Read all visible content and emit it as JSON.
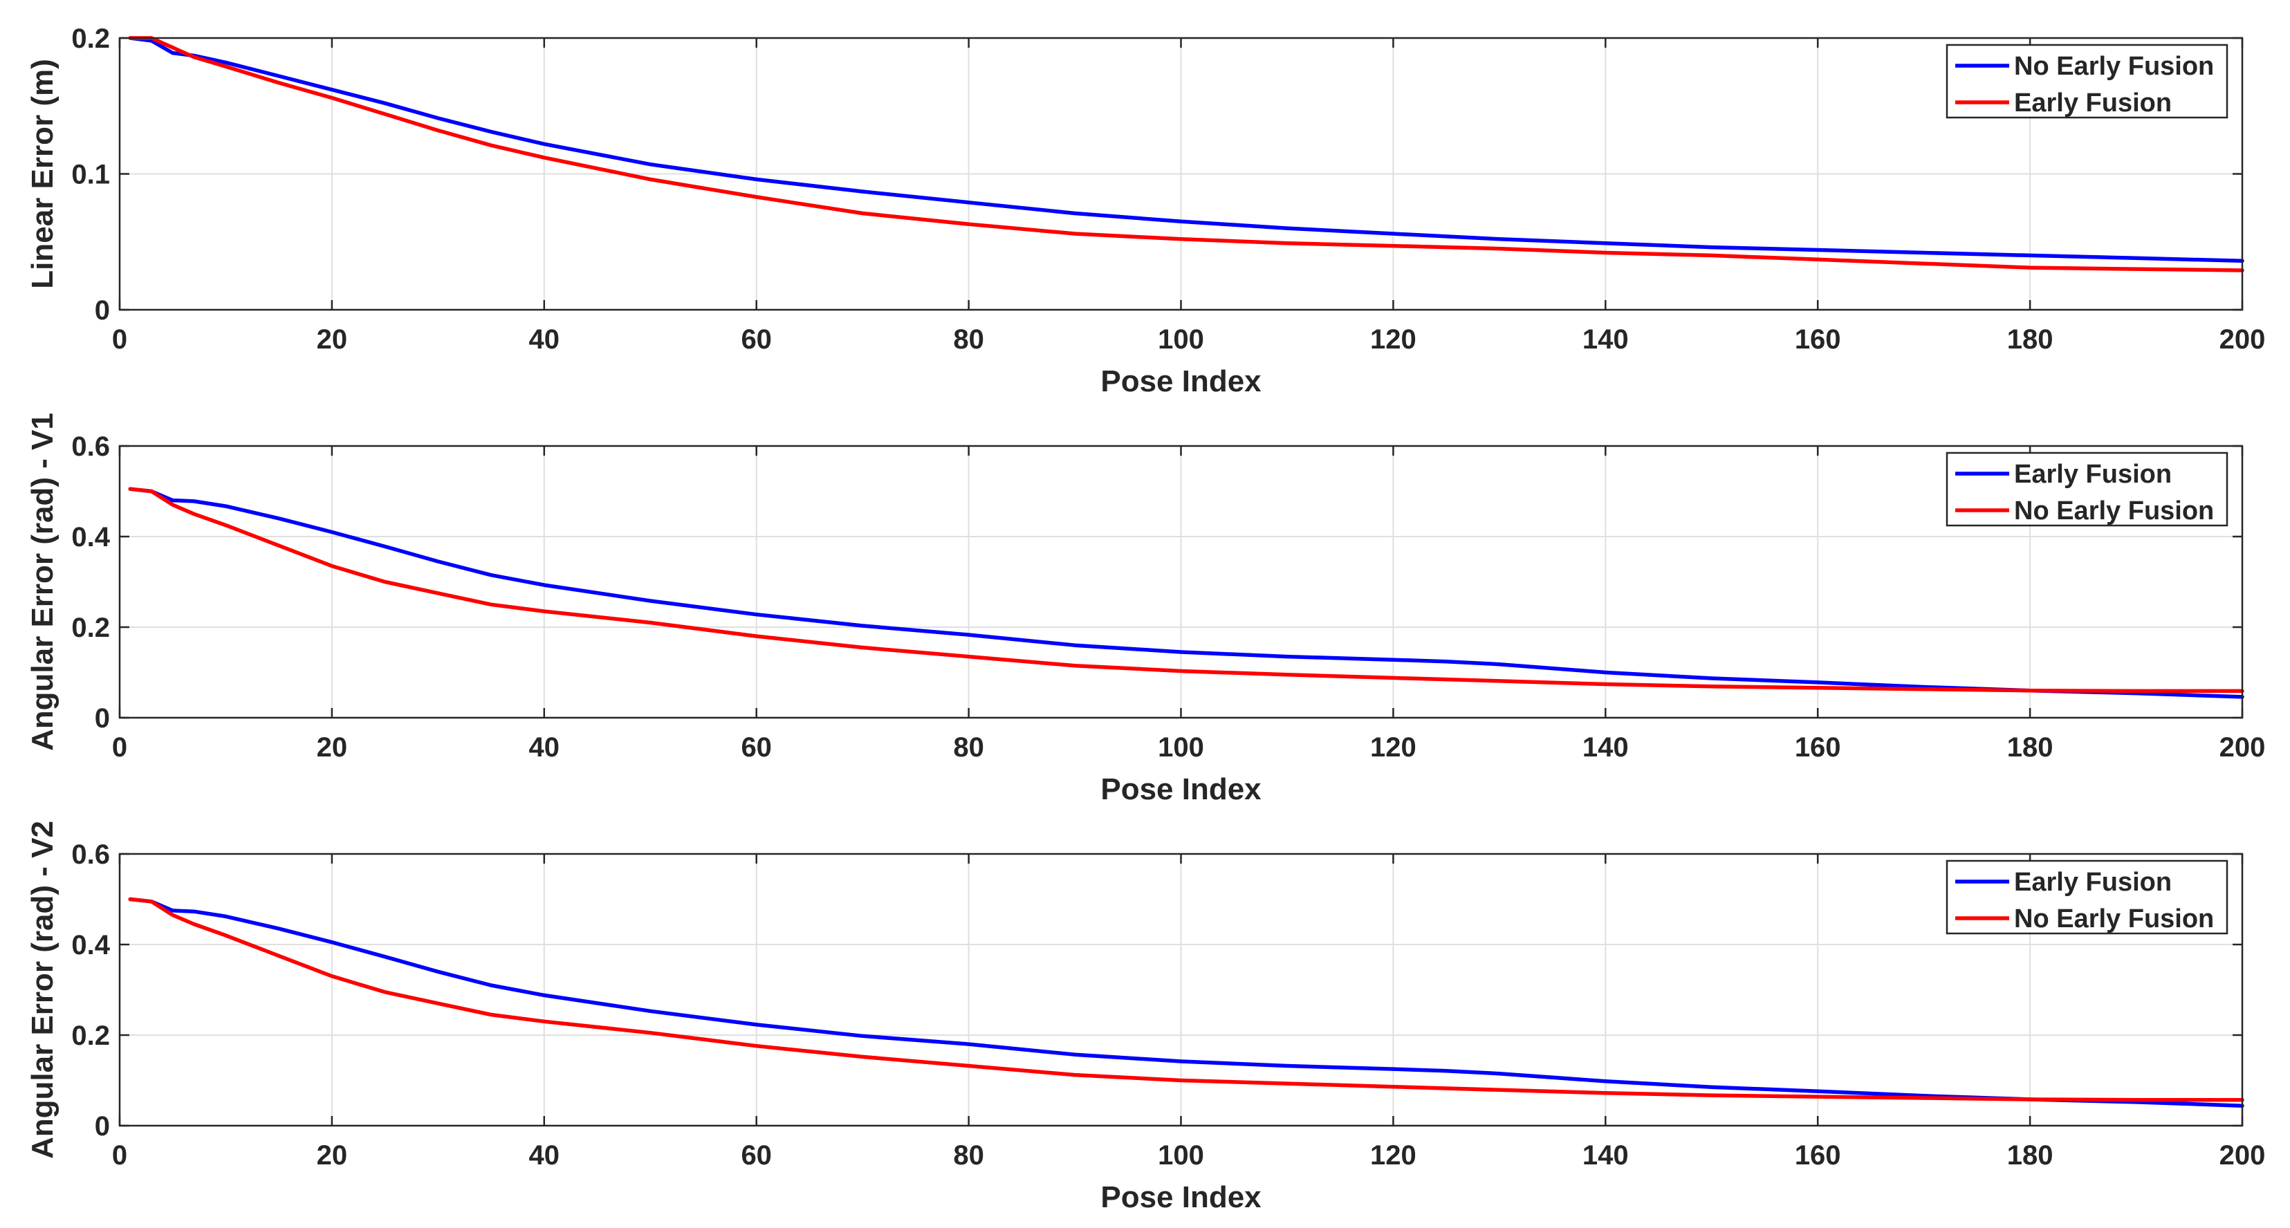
{
  "chart_data": [
    {
      "type": "line",
      "xlabel": "Pose Index",
      "ylabel": "Linear Error (m)",
      "xlim": [
        0,
        200
      ],
      "ylim": [
        0,
        0.2
      ],
      "xticks": [
        0,
        20,
        40,
        60,
        80,
        100,
        120,
        140,
        160,
        180,
        200
      ],
      "yticks": [
        0,
        0.1,
        0.2
      ],
      "ytick_labels": [
        "0",
        "0.1",
        "0.2"
      ],
      "grid": true,
      "legend_position": "top-right",
      "series": [
        {
          "name": "No Early Fusion",
          "color": "#0000ff",
          "x": [
            1,
            3,
            5,
            7,
            10,
            15,
            20,
            25,
            30,
            35,
            40,
            50,
            60,
            70,
            80,
            90,
            100,
            110,
            120,
            130,
            140,
            150,
            160,
            170,
            180,
            190,
            200
          ],
          "y": [
            0.2,
            0.198,
            0.189,
            0.187,
            0.182,
            0.172,
            0.162,
            0.152,
            0.141,
            0.131,
            0.122,
            0.107,
            0.096,
            0.087,
            0.079,
            0.071,
            0.065,
            0.06,
            0.056,
            0.052,
            0.049,
            0.046,
            0.044,
            0.042,
            0.04,
            0.038,
            0.036
          ]
        },
        {
          "name": "Early Fusion",
          "color": "#ff0000",
          "x": [
            1,
            3,
            5,
            7,
            10,
            15,
            20,
            25,
            30,
            35,
            40,
            50,
            60,
            70,
            80,
            90,
            100,
            110,
            120,
            130,
            140,
            150,
            160,
            170,
            180,
            190,
            200
          ],
          "y": [
            0.2,
            0.2,
            0.193,
            0.186,
            0.179,
            0.167,
            0.156,
            0.144,
            0.132,
            0.121,
            0.112,
            0.096,
            0.083,
            0.071,
            0.063,
            0.056,
            0.052,
            0.049,
            0.047,
            0.045,
            0.042,
            0.04,
            0.037,
            0.034,
            0.031,
            0.03,
            0.029
          ]
        }
      ]
    },
    {
      "type": "line",
      "xlabel": "Pose Index",
      "ylabel": "Angular Error (rad) - V1",
      "xlim": [
        0,
        200
      ],
      "ylim": [
        0,
        0.6
      ],
      "xticks": [
        0,
        20,
        40,
        60,
        80,
        100,
        120,
        140,
        160,
        180,
        200
      ],
      "yticks": [
        0,
        0.2,
        0.4,
        0.6
      ],
      "ytick_labels": [
        "0",
        "0.2",
        "0.4",
        "0.6"
      ],
      "grid": true,
      "legend_position": "top-right",
      "series": [
        {
          "name": "Early Fusion",
          "color": "#0000ff",
          "x": [
            1,
            3,
            5,
            7,
            10,
            15,
            20,
            25,
            30,
            35,
            40,
            50,
            60,
            70,
            80,
            90,
            100,
            110,
            120,
            125,
            130,
            140,
            150,
            160,
            170,
            180,
            190,
            200
          ],
          "y": [
            0.505,
            0.5,
            0.48,
            0.478,
            0.467,
            0.44,
            0.41,
            0.378,
            0.345,
            0.315,
            0.293,
            0.258,
            0.228,
            0.203,
            0.183,
            0.16,
            0.145,
            0.135,
            0.128,
            0.124,
            0.118,
            0.1,
            0.087,
            0.078,
            0.068,
            0.06,
            0.054,
            0.046
          ]
        },
        {
          "name": "No Early Fusion",
          "color": "#ff0000",
          "x": [
            1,
            3,
            5,
            7,
            10,
            15,
            20,
            25,
            30,
            35,
            40,
            50,
            60,
            70,
            80,
            90,
            100,
            110,
            120,
            130,
            140,
            150,
            160,
            170,
            180,
            190,
            200
          ],
          "y": [
            0.505,
            0.5,
            0.47,
            0.45,
            0.425,
            0.38,
            0.335,
            0.3,
            0.275,
            0.25,
            0.235,
            0.21,
            0.18,
            0.155,
            0.135,
            0.115,
            0.103,
            0.095,
            0.088,
            0.081,
            0.074,
            0.069,
            0.066,
            0.063,
            0.06,
            0.059,
            0.059
          ]
        }
      ]
    },
    {
      "type": "line",
      "xlabel": "Pose Index",
      "ylabel": "Angular Error (rad) - V2",
      "xlim": [
        0,
        200
      ],
      "ylim": [
        0,
        0.6
      ],
      "xticks": [
        0,
        20,
        40,
        60,
        80,
        100,
        120,
        140,
        160,
        180,
        200
      ],
      "yticks": [
        0,
        0.2,
        0.4,
        0.6
      ],
      "ytick_labels": [
        "0",
        "0.2",
        "0.4",
        "0.6"
      ],
      "grid": true,
      "legend_position": "top-right",
      "series": [
        {
          "name": "Early Fusion",
          "color": "#0000ff",
          "x": [
            1,
            3,
            5,
            7,
            10,
            15,
            20,
            25,
            30,
            35,
            40,
            50,
            60,
            70,
            80,
            90,
            100,
            110,
            120,
            125,
            130,
            140,
            150,
            160,
            170,
            180,
            190,
            200
          ],
          "y": [
            0.5,
            0.495,
            0.475,
            0.473,
            0.462,
            0.435,
            0.405,
            0.373,
            0.34,
            0.31,
            0.288,
            0.253,
            0.223,
            0.198,
            0.18,
            0.157,
            0.142,
            0.132,
            0.125,
            0.121,
            0.115,
            0.098,
            0.085,
            0.076,
            0.066,
            0.058,
            0.052,
            0.044
          ]
        },
        {
          "name": "No Early Fusion",
          "color": "#ff0000",
          "x": [
            1,
            3,
            5,
            7,
            10,
            15,
            20,
            25,
            30,
            35,
            40,
            50,
            60,
            70,
            80,
            90,
            100,
            110,
            120,
            130,
            140,
            150,
            160,
            170,
            180,
            190,
            200
          ],
          "y": [
            0.5,
            0.495,
            0.465,
            0.445,
            0.42,
            0.375,
            0.33,
            0.295,
            0.27,
            0.245,
            0.23,
            0.205,
            0.176,
            0.152,
            0.132,
            0.112,
            0.1,
            0.093,
            0.086,
            0.079,
            0.072,
            0.067,
            0.064,
            0.061,
            0.058,
            0.057,
            0.057
          ]
        }
      ]
    }
  ]
}
